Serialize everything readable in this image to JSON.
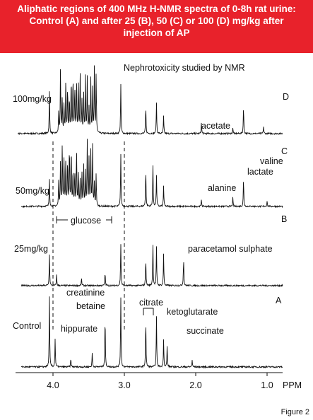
{
  "header": {
    "title_lines": [
      "Aliphatic regions of 400 MHz H-NMR spectra of 0-8h rat urine:",
      "Control (A) and after 25 (B), 50 (C) or 100 (D) mg/kg after",
      "injection of   AP"
    ]
  },
  "figure": {
    "title": "Nephrotoxicity studied by NMR",
    "labels": {
      "dose_100": "100mg/kg",
      "dose_50": "50mg/kg",
      "dose_25": "25mg/kg",
      "control": "Control",
      "trace_d": "D",
      "trace_c": "C",
      "trace_b": "B",
      "trace_a": "A",
      "acetate": "acetate",
      "valine": "valine",
      "lactate": "lactate",
      "alanine": "alanine",
      "glucose": "glucose",
      "paracetamol_sulphate": "paracetamol sulphate",
      "creatinine": "creatinine",
      "betaine": "betaine",
      "citrate": "citrate",
      "ketoglutarate": "ketoglutarate",
      "hippurate": "hippurate",
      "succinate": "succinate"
    },
    "axis": {
      "ticks": [
        "4.0",
        "3.0",
        "2.0",
        "1.0"
      ],
      "unit": "PPM"
    }
  },
  "caption": "Figure 2"
}
